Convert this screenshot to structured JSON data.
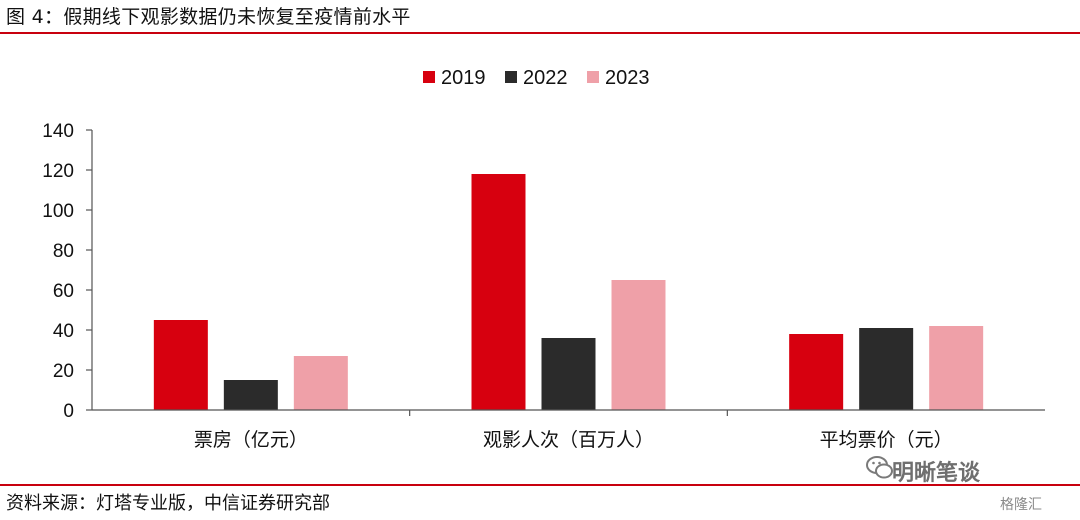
{
  "figure": {
    "title": "图 4：假期线下观影数据仍未恢复至疫情前水平",
    "source": "资料来源：灯塔专业版，中信证券研究部",
    "watermark": "明晰笔谈",
    "logo": "格隆汇"
  },
  "colors": {
    "rule": "#c8000e",
    "series": [
      "#d7000f",
      "#2b2b2b",
      "#efa0a8"
    ]
  },
  "chart_data": {
    "type": "bar",
    "categories": [
      "票房（亿元）",
      "观影人次（百万人）",
      "平均票价（元）"
    ],
    "series": [
      {
        "name": "2019",
        "values": [
          45,
          118,
          38
        ]
      },
      {
        "name": "2022",
        "values": [
          15,
          36,
          41
        ]
      },
      {
        "name": "2023",
        "values": [
          27,
          65,
          42
        ]
      }
    ],
    "ylim": [
      0,
      140
    ],
    "yticks": [
      "0",
      "20",
      "40",
      "60",
      "80",
      "100",
      "120",
      "140"
    ],
    "legend": "top-center",
    "grid": false
  }
}
